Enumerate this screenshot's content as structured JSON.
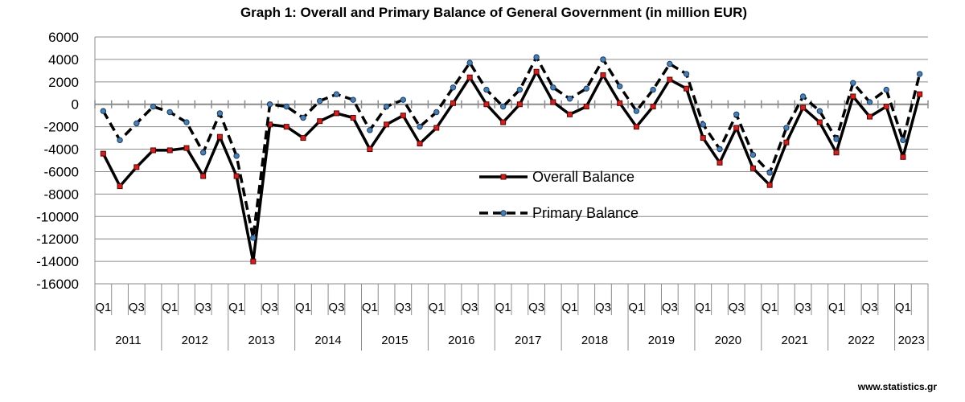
{
  "chart_data": {
    "type": "line",
    "title": "Graph 1: Overall and Primary Balance of General Government (in million EUR)",
    "xlabel": "",
    "ylabel": "",
    "ylim": [
      -16000,
      6000
    ],
    "y_ticks": [
      6000,
      4000,
      2000,
      0,
      -2000,
      -4000,
      -6000,
      -8000,
      -10000,
      -12000,
      -14000,
      -16000
    ],
    "y_tick_labels": [
      "6000",
      "4000",
      "2000",
      "0",
      "-2000",
      "-4000",
      "-6000",
      "-8000",
      "-10000",
      "-12000",
      "-14000",
      "-16000"
    ],
    "grid": true,
    "legend_placement": "center",
    "years": [
      "2011",
      "2012",
      "2013",
      "2014",
      "2015",
      "2016",
      "2017",
      "2018",
      "2019",
      "2020",
      "2021",
      "2022",
      "2023"
    ],
    "quarter_labels": [
      "Q1",
      "",
      "Q3",
      ""
    ],
    "categories": [
      "2011 Q1",
      "2011 Q2",
      "2011 Q3",
      "2011 Q4",
      "2012 Q1",
      "2012 Q2",
      "2012 Q3",
      "2012 Q4",
      "2013 Q1",
      "2013 Q2",
      "2013 Q3",
      "2013 Q4",
      "2014 Q1",
      "2014 Q2",
      "2014 Q3",
      "2014 Q4",
      "2015 Q1",
      "2015 Q2",
      "2015 Q3",
      "2015 Q4",
      "2016 Q1",
      "2016 Q2",
      "2016 Q3",
      "2016 Q4",
      "2017 Q1",
      "2017 Q2",
      "2017 Q3",
      "2017 Q4",
      "2018 Q1",
      "2018 Q2",
      "2018 Q3",
      "2018 Q4",
      "2019 Q1",
      "2019 Q2",
      "2019 Q3",
      "2019 Q4",
      "2020 Q1",
      "2020 Q2",
      "2020 Q3",
      "2020 Q4",
      "2021 Q1",
      "2021 Q2",
      "2021 Q3",
      "2021 Q4",
      "2022 Q1",
      "2022 Q2",
      "2022 Q3",
      "2022 Q4",
      "2023 Q1",
      "2023 Q2"
    ],
    "series": [
      {
        "name": "Overall Balance",
        "style": "solid",
        "color": "#000000",
        "marker_color": "#cc2222",
        "values": [
          -4400,
          -7300,
          -5600,
          -4100,
          -4100,
          -3900,
          -6400,
          -2900,
          -6400,
          -14000,
          -1800,
          -2000,
          -3000,
          -1500,
          -800,
          -1200,
          -4000,
          -1800,
          -1000,
          -3500,
          -2100,
          100,
          2400,
          0,
          -1600,
          0,
          2900,
          200,
          -900,
          -200,
          2600,
          100,
          -2000,
          -200,
          2200,
          1400,
          -3000,
          -5200,
          -2100,
          -5700,
          -7200,
          -3400,
          -300,
          -1600,
          -4300,
          700,
          -1100,
          -200,
          -4700,
          900
        ]
      },
      {
        "name": "Primary Balance",
        "style": "dashed",
        "color": "#000000",
        "marker_color": "#4a7fb5",
        "values": [
          -600,
          -3200,
          -1700,
          -200,
          -700,
          -1600,
          -4300,
          -800,
          -4600,
          -11900,
          0,
          -200,
          -1200,
          300,
          900,
          400,
          -2300,
          -200,
          400,
          -2000,
          -700,
          1500,
          3700,
          1300,
          -200,
          1300,
          4200,
          1500,
          500,
          1400,
          4000,
          1600,
          -600,
          1300,
          3600,
          2700,
          -1800,
          -4000,
          -900,
          -4500,
          -6100,
          -2100,
          700,
          -600,
          -3100,
          1900,
          200,
          1300,
          -3200,
          2700
        ]
      }
    ]
  },
  "source": "www.statistics.gr"
}
